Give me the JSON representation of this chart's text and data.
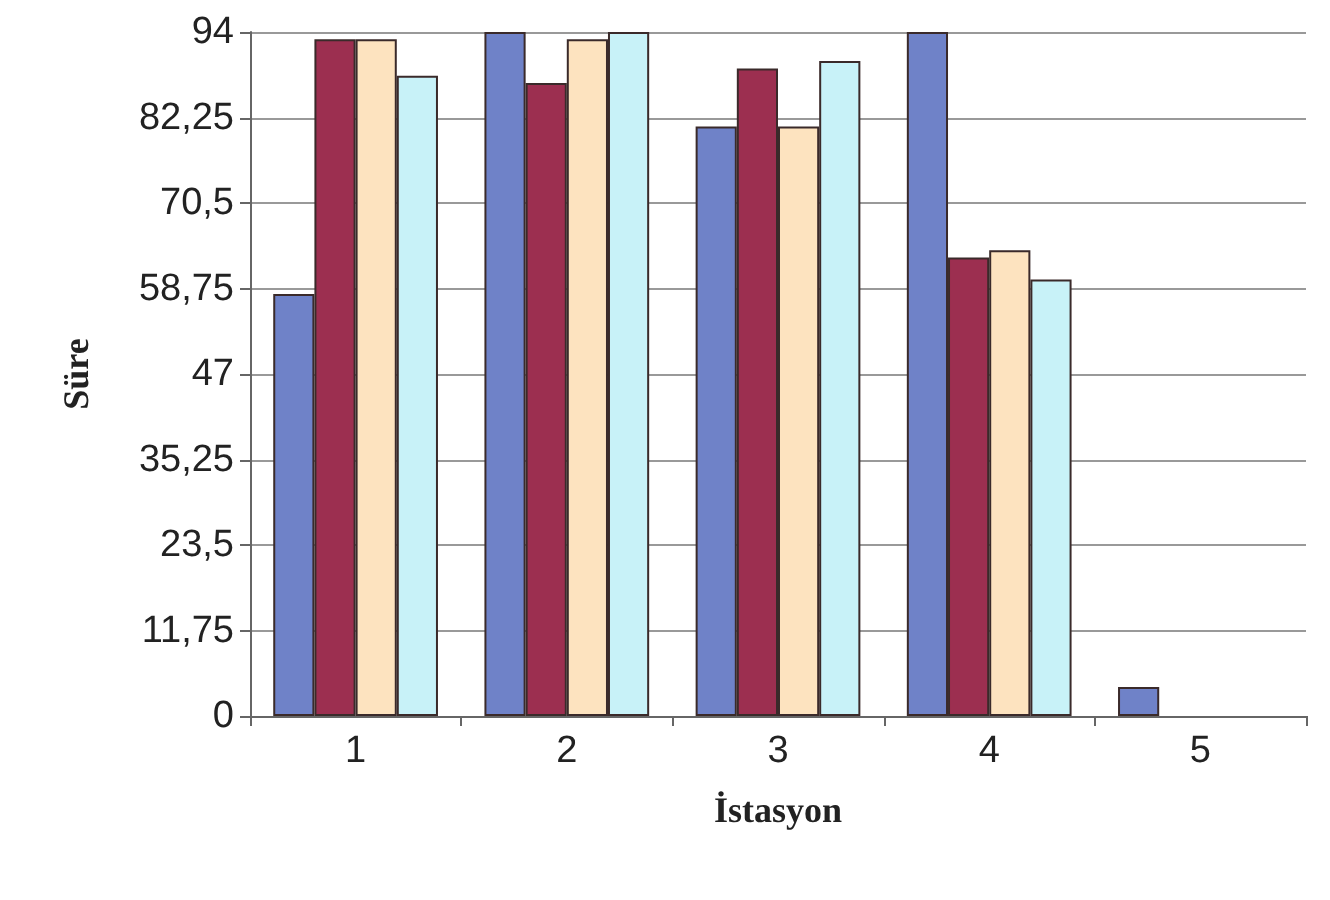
{
  "chart_data": {
    "type": "bar",
    "xlabel": "İstasyon",
    "ylabel": "Süre",
    "categories": [
      "1",
      "2",
      "3",
      "4",
      "5"
    ],
    "series": [
      {
        "color": "#6f82c8",
        "values": [
          58,
          94,
          81,
          94,
          4
        ]
      },
      {
        "color": "#9c2f50",
        "values": [
          93,
          87,
          89,
          63,
          null
        ]
      },
      {
        "color": "#fde3bf",
        "values": [
          93,
          93,
          81,
          64,
          null
        ]
      },
      {
        "color": "#c8f2f8",
        "values": [
          88,
          94,
          90,
          60,
          null
        ]
      }
    ],
    "ylim": [
      0,
      94
    ],
    "yticks": [
      {
        "value": 0,
        "label": "0"
      },
      {
        "value": 11.75,
        "label": "11,75"
      },
      {
        "value": 23.5,
        "label": "23,5"
      },
      {
        "value": 35.25,
        "label": "35,25"
      },
      {
        "value": 47,
        "label": "47"
      },
      {
        "value": 58.75,
        "label": "58,75"
      },
      {
        "value": 70.5,
        "label": "70,5"
      },
      {
        "value": 82.25,
        "label": "82,25"
      },
      {
        "value": 94,
        "label": "94"
      }
    ],
    "grid": "y"
  }
}
